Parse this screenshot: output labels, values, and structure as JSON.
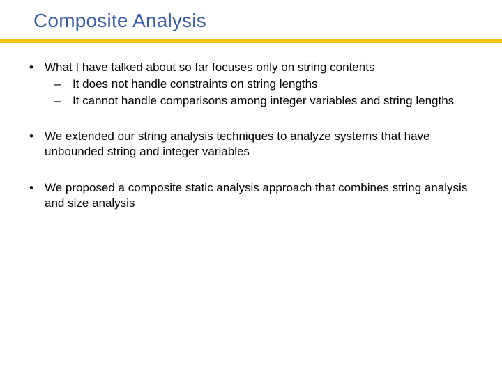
{
  "slide": {
    "title": "Composite Analysis",
    "title_color": "#3b5ea3",
    "title_fontsize": 28,
    "accent_line_color": "#f2c218",
    "accent_line_thickness": 6,
    "background_color": "#ffffff",
    "body_color": "#000000",
    "body_fontsize": 17,
    "bullets": [
      {
        "text": "What I have talked about so far focuses only on string contents",
        "sub": [
          {
            "text": "It does not handle constraints on string lengths"
          },
          {
            "text": "It cannot handle comparisons among integer variables and string lengths"
          }
        ]
      },
      {
        "text": "We extended our string analysis techniques to analyze systems that have unbounded string and integer variables",
        "sub": []
      },
      {
        "text": "We proposed a composite static analysis approach that combines string analysis and size analysis",
        "sub": []
      }
    ],
    "bullet_glyph": "•",
    "subbullet_glyph": "–"
  }
}
